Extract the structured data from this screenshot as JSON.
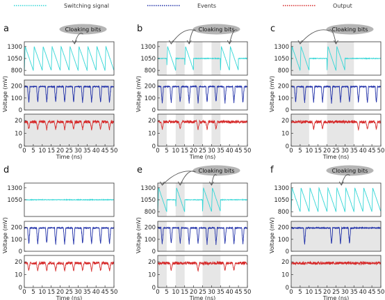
{
  "legend": [
    {
      "label": "Switching signal",
      "color": "#33d6d6",
      "style": "dotted"
    },
    {
      "label": "Events",
      "color": "#1f2fa8",
      "style": "dotted"
    },
    {
      "label": "Output",
      "color": "#d62a2a",
      "style": "dotted"
    }
  ],
  "colors": {
    "switching": "#33d6d6",
    "events": "#1f2fa8",
    "output": "#d62a2a",
    "shade": "#e6e6e6",
    "bubble": "#b5b5b5"
  },
  "ylabel": "Voltage (mV)",
  "xlabel": "Time (ns)",
  "chart_data": [
    {
      "panel": "a",
      "type": "line",
      "cloak_label": "Cloaking bits",
      "switching_mode": "full",
      "shaded": [
        [
          0,
          50
        ]
      ],
      "events_dips": [
        2.5,
        7.5,
        12.5,
        17.5,
        22.5,
        27.5,
        32.5,
        37.5,
        42.5,
        47.5
      ],
      "output_dips": [
        2.5,
        7.5,
        12.5,
        17.5,
        22.5,
        27.5,
        32.5,
        37.5,
        42.5,
        47.5
      ],
      "xlim": [
        0,
        50
      ],
      "xticks": [
        0,
        5,
        10,
        15,
        20,
        25,
        30,
        35,
        40,
        45,
        50
      ],
      "ylim_switch": [
        700,
        1400
      ],
      "yticks_switch": [
        800,
        1050,
        1300
      ],
      "ylim_events": [
        0,
        250
      ],
      "yticks_events": [
        0,
        100,
        200
      ],
      "ylim_output": [
        0,
        25
      ],
      "yticks_output": [
        0,
        10,
        20
      ]
    },
    {
      "panel": "b",
      "type": "line",
      "cloak_label": "Cloaking bits",
      "switching_mode": "windows",
      "windows": [
        [
          5,
          10
        ],
        [
          15,
          20
        ],
        [
          35,
          45
        ]
      ],
      "shaded": [
        [
          0,
          5
        ],
        [
          10,
          15
        ],
        [
          20,
          25
        ],
        [
          30,
          35
        ]
      ],
      "events_dips": [
        2.5,
        7.5,
        12.5,
        17.5,
        22.5,
        27.5,
        32.5,
        37.5,
        42.5,
        47.5
      ],
      "output_dips": [
        2.5,
        12.5,
        22.5,
        27.5,
        32.5
      ],
      "xlim": [
        0,
        50
      ],
      "xticks": [
        0,
        5,
        10,
        15,
        20,
        25,
        30,
        35,
        40,
        45,
        50
      ],
      "ylim_switch": [
        700,
        1400
      ],
      "yticks_switch": [
        800,
        1050,
        1300
      ],
      "ylim_events": [
        0,
        250
      ],
      "yticks_events": [
        0,
        100,
        200
      ],
      "ylim_output": [
        0,
        25
      ],
      "yticks_output": [
        0,
        10,
        20
      ]
    },
    {
      "panel": "c",
      "type": "line",
      "cloak_label": "Cloaking bits",
      "switching_mode": "windows",
      "windows": [
        [
          0,
          10
        ],
        [
          20,
          30
        ]
      ],
      "shaded": [
        [
          0,
          10
        ],
        [
          20,
          35
        ]
      ],
      "events_dips": [
        2.5,
        7.5,
        12.5,
        17.5,
        22.5,
        27.5,
        32.5,
        37.5,
        42.5,
        47.5
      ],
      "output_dips": [
        12.5,
        17.5,
        37.5,
        42.5,
        47.5
      ],
      "xlim": [
        0,
        50
      ],
      "xticks": [
        0,
        5,
        10,
        15,
        20,
        25,
        30,
        35,
        40,
        45,
        50
      ],
      "ylim_switch": [
        700,
        1400
      ],
      "yticks_switch": [
        800,
        1050,
        1300
      ],
      "ylim_events": [
        0,
        250
      ],
      "yticks_events": [
        0,
        100,
        200
      ],
      "ylim_output": [
        0,
        25
      ],
      "yticks_output": [
        0,
        10,
        20
      ]
    },
    {
      "panel": "d",
      "type": "line",
      "cloak_label": "",
      "switching_mode": "flat",
      "shaded": [],
      "events_dips": [
        2.5,
        7.5,
        12.5,
        17.5,
        22.5,
        27.5,
        32.5,
        37.5,
        42.5,
        47.5
      ],
      "output_dips": [
        2.5,
        7.5,
        12.5,
        17.5,
        22.5,
        27.5,
        32.5,
        37.5,
        42.5,
        47.5
      ],
      "xlim": [
        0,
        50
      ],
      "xticks": [
        0,
        5,
        10,
        15,
        20,
        25,
        30,
        35,
        40,
        45,
        50
      ],
      "ylim_switch": [
        700,
        1400
      ],
      "yticks_switch": [
        1050,
        1300
      ],
      "ylim_events": [
        0,
        250
      ],
      "yticks_events": [
        0,
        100,
        200
      ],
      "ylim_output": [
        0,
        25
      ],
      "yticks_output": [
        0,
        10,
        20
      ]
    },
    {
      "panel": "e",
      "type": "line",
      "cloak_label": "Cloaking bits",
      "switching_mode": "windows",
      "windows": [
        [
          0,
          5
        ],
        [
          10,
          15
        ],
        [
          25,
          35
        ]
      ],
      "shaded": [
        [
          0,
          5
        ],
        [
          10,
          15
        ],
        [
          25,
          35
        ]
      ],
      "events_dips": [
        2.5,
        7.5,
        12.5,
        17.5,
        22.5,
        27.5,
        32.5,
        37.5,
        42.5,
        47.5
      ],
      "output_dips": [
        7.5,
        22.5,
        37.5,
        42.5
      ],
      "xlim": [
        0,
        50
      ],
      "xticks": [
        0,
        5,
        10,
        15,
        20,
        25,
        30,
        35,
        40,
        45,
        50
      ],
      "ylim_switch": [
        700,
        1400
      ],
      "yticks_switch": [
        800,
        1050,
        1300
      ],
      "ylim_events": [
        0,
        250
      ],
      "yticks_events": [
        0,
        100,
        200
      ],
      "ylim_output": [
        0,
        25
      ],
      "yticks_output": [
        0,
        10,
        20
      ]
    },
    {
      "panel": "f",
      "type": "line",
      "cloak_label": "Cloaking bits",
      "switching_mode": "full",
      "shaded": [
        [
          0,
          50
        ]
      ],
      "events_dips": [
        7.5,
        22.5,
        27.5,
        32.5
      ],
      "output_dips": [],
      "xlim": [
        0,
        50
      ],
      "xticks": [
        0,
        5,
        10,
        15,
        20,
        25,
        30,
        35,
        40,
        45,
        50
      ],
      "ylim_switch": [
        700,
        1400
      ],
      "yticks_switch": [
        800,
        1050,
        1300
      ],
      "ylim_events": [
        0,
        250
      ],
      "yticks_events": [
        0,
        100,
        200
      ],
      "ylim_output": [
        0,
        25
      ],
      "yticks_output": [
        0,
        10,
        20
      ]
    }
  ]
}
